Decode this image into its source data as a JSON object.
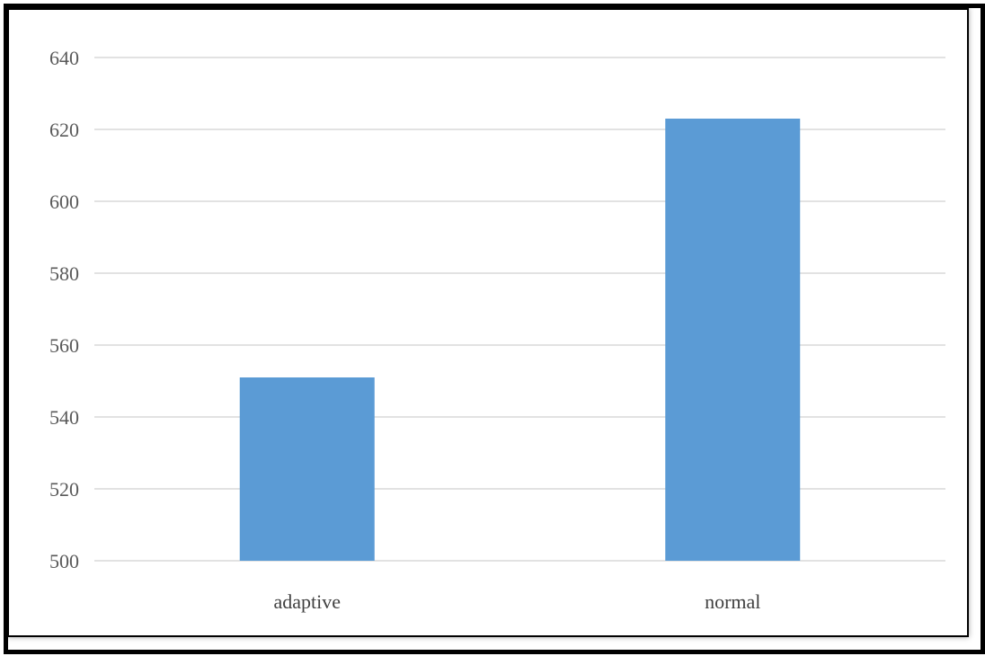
{
  "chart_data": {
    "type": "bar",
    "title": "",
    "xlabel": "",
    "ylabel": "",
    "categories": [
      "adaptive",
      "normal"
    ],
    "values": [
      551,
      623
    ],
    "ylim": [
      500,
      640
    ],
    "yticks": [
      500,
      520,
      540,
      560,
      580,
      600,
      620,
      640
    ],
    "grid": true,
    "legend": "none",
    "bar_color": "#5b9bd5",
    "grid_color": "#d9d9d9"
  }
}
